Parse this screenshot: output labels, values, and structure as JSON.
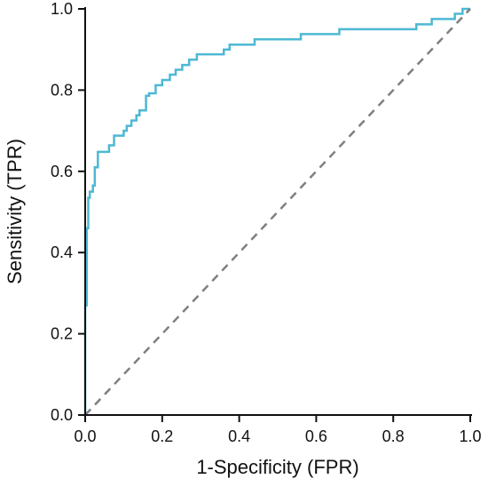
{
  "chart_data": {
    "type": "line",
    "xlabel": "1-Specificity (FPR)",
    "ylabel": "Sensitivity (TPR)",
    "xlim": [
      0,
      1
    ],
    "ylim": [
      0,
      1
    ],
    "xticks": [
      "0.0",
      "0.2",
      "0.4",
      "0.6",
      "0.8",
      "1.0"
    ],
    "yticks": [
      "0.0",
      "0.2",
      "0.4",
      "0.6",
      "0.8",
      "1.0"
    ],
    "grid": false,
    "legend": "none",
    "colors": {
      "roc": "#4db8d4",
      "reference": "#7f7f7f",
      "axis": "#111111"
    },
    "series": [
      {
        "style": "solid",
        "x": [
          0,
          0,
          0.004,
          0.004,
          0.008,
          0.008,
          0.012,
          0.012,
          0.02,
          0.02,
          0.025,
          0.025,
          0.033,
          0.033,
          0.05,
          0.05,
          0.062,
          0.062,
          0.075,
          0.075,
          0.1,
          0.1,
          0.108,
          0.108,
          0.12,
          0.12,
          0.133,
          0.133,
          0.141,
          0.141,
          0.158,
          0.158,
          0.166,
          0.166,
          0.183,
          0.183,
          0.2,
          0.2,
          0.22,
          0.22,
          0.235,
          0.235,
          0.252,
          0.252,
          0.27,
          0.27,
          0.29,
          0.29,
          0.36,
          0.36,
          0.375,
          0.375,
          0.44,
          0.44,
          0.56,
          0.56,
          0.66,
          0.66,
          0.82,
          0.82,
          0.86,
          0.86,
          0.9,
          0.9,
          0.93,
          0.93,
          0.96,
          0.96,
          0.98,
          0.98,
          1.0
        ],
        "y": [
          0,
          0.27,
          0.27,
          0.46,
          0.46,
          0.535,
          0.535,
          0.55,
          0.55,
          0.565,
          0.565,
          0.61,
          0.61,
          0.648,
          0.648,
          0.648,
          0.648,
          0.664,
          0.664,
          0.688,
          0.688,
          0.7,
          0.7,
          0.712,
          0.712,
          0.725,
          0.725,
          0.738,
          0.738,
          0.75,
          0.75,
          0.786,
          0.786,
          0.792,
          0.792,
          0.812,
          0.812,
          0.825,
          0.825,
          0.838,
          0.838,
          0.85,
          0.85,
          0.862,
          0.862,
          0.875,
          0.875,
          0.888,
          0.888,
          0.9,
          0.9,
          0.912,
          0.912,
          0.925,
          0.925,
          0.938,
          0.938,
          0.95,
          0.95,
          0.95,
          0.95,
          0.962,
          0.962,
          0.975,
          0.975,
          0.975,
          0.975,
          0.988,
          0.988,
          1.0,
          1.0
        ]
      },
      {
        "style": "dashed",
        "x": [
          0,
          1
        ],
        "y": [
          0,
          1
        ]
      }
    ]
  }
}
